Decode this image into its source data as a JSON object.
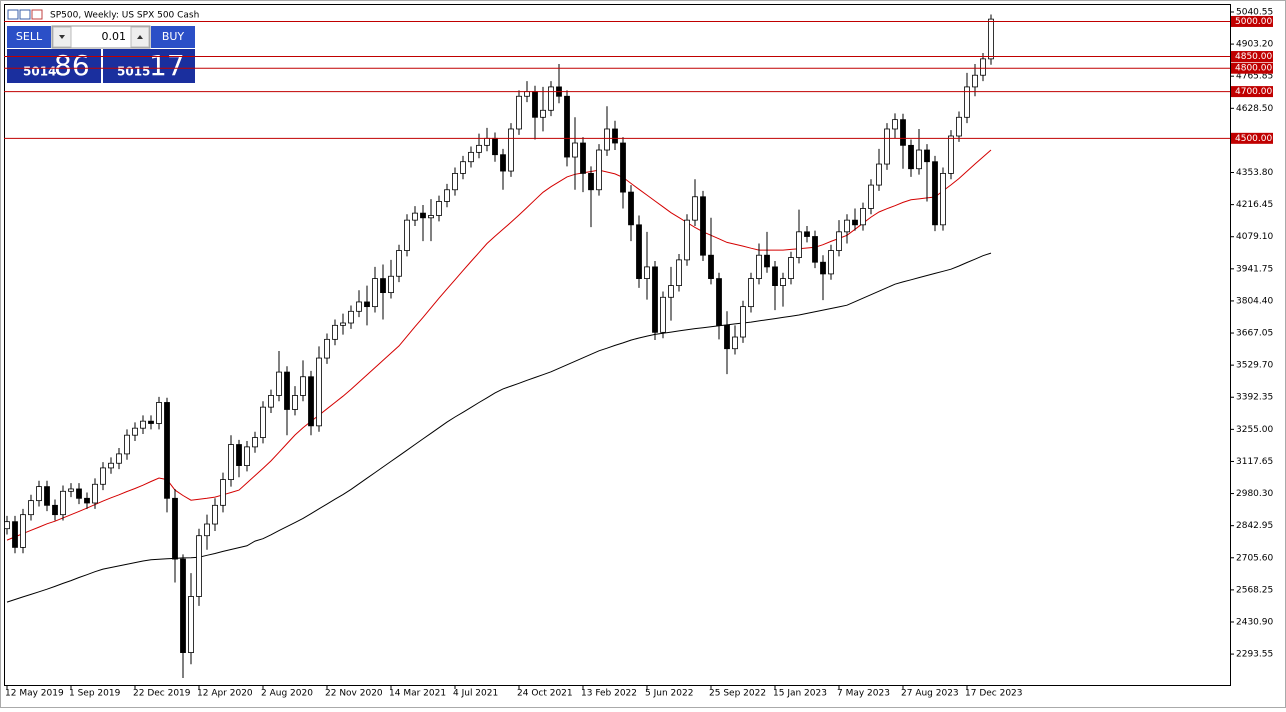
{
  "chart_data": {
    "type": "candlestick",
    "title": "SP500, Weekly: US SPX 500 Cash",
    "categories": [
      "12 May 2019",
      null,
      null,
      null,
      null,
      null,
      null,
      null,
      "1 Sep 2019",
      null,
      null,
      null,
      null,
      null,
      null,
      null,
      "22 Dec 2019",
      null,
      null,
      null,
      null,
      null,
      null,
      null,
      "12 Apr 2020",
      null,
      null,
      null,
      null,
      null,
      null,
      null,
      "2 Aug 2020",
      null,
      null,
      null,
      null,
      null,
      null,
      null,
      "22 Nov 2020",
      null,
      null,
      null,
      null,
      null,
      null,
      null,
      "14 Mar 2021",
      null,
      null,
      null,
      null,
      null,
      null,
      null,
      "4 Jul 2021",
      null,
      null,
      null,
      null,
      null,
      null,
      null,
      "24 Oct 2021",
      null,
      null,
      null,
      null,
      null,
      null,
      null,
      "13 Feb 2022",
      null,
      null,
      null,
      null,
      null,
      null,
      null,
      "5 Jun 2022",
      null,
      null,
      null,
      null,
      null,
      null,
      null,
      "25 Sep 2022",
      null,
      null,
      null,
      null,
      null,
      null,
      null,
      "15 Jan 2023",
      null,
      null,
      null,
      null,
      null,
      null,
      null,
      "7 May 2023",
      null,
      null,
      null,
      null,
      null,
      null,
      null,
      "27 Aug 2023",
      null,
      null,
      null,
      null,
      null,
      null,
      null,
      "17 Dec 2023",
      null,
      null,
      null
    ],
    "open": [
      2830,
      2860,
      2750,
      2890,
      2950,
      3010,
      2930,
      2890,
      2990,
      3000,
      2960,
      2940,
      3020,
      3090,
      3110,
      3150,
      3230,
      3260,
      3290,
      3280,
      3370,
      2960,
      2700,
      2300,
      2540,
      2800,
      2850,
      2930,
      3040,
      3190,
      3100,
      3180,
      3220,
      3350,
      3400,
      3500,
      3340,
      3400,
      3480,
      3270,
      3560,
      3640,
      3700,
      3710,
      3760,
      3800,
      3780,
      3900,
      3840,
      3910,
      4020,
      4150,
      4180,
      4160,
      4170,
      4230,
      4280,
      4350,
      4400,
      4440,
      4470,
      4500,
      4430,
      4360,
      4540,
      4680,
      4700,
      4590,
      4620,
      4720,
      4680,
      4420,
      4480,
      4350,
      4280,
      4450,
      4540,
      4480,
      4270,
      4130,
      3900,
      3950,
      3670,
      3820,
      3870,
      3980,
      4150,
      4250,
      4000,
      3900,
      3700,
      3600,
      3650,
      3780,
      3900,
      4000,
      3950,
      3870,
      3900,
      3990,
      4100,
      4080,
      3970,
      3920,
      4020,
      4100,
      4150,
      4130,
      4200,
      4300,
      4390,
      4540,
      4580,
      4470,
      4370,
      4450,
      4400,
      4130,
      4350,
      4510,
      4590,
      4720,
      4770,
      4840
    ],
    "high": [
      2885,
      2885,
      2915,
      2975,
      3035,
      3035,
      2955,
      3015,
      3025,
      3025,
      2985,
      3045,
      3115,
      3135,
      3175,
      3255,
      3285,
      3315,
      3315,
      3394,
      3390,
      3000,
      2720,
      2640,
      2830,
      2890,
      2960,
      3070,
      3230,
      3210,
      3205,
      3245,
      3375,
      3425,
      3590,
      3525,
      3440,
      3550,
      3505,
      3610,
      3665,
      3725,
      3750,
      3785,
      3850,
      3870,
      3950,
      3960,
      3980,
      4045,
      4175,
      4210,
      4215,
      4240,
      4255,
      4305,
      4375,
      4425,
      4465,
      4520,
      4545,
      4525,
      4455,
      4565,
      4705,
      4745,
      4725,
      4720,
      4745,
      4818,
      4705,
      4590,
      4505,
      4380,
      4475,
      4637,
      4575,
      4505,
      4300,
      4170,
      4100,
      3975,
      3845,
      3950,
      4005,
      4175,
      4325,
      4275,
      4160,
      3925,
      3760,
      3700,
      3805,
      3925,
      4050,
      4100,
      3975,
      3925,
      4015,
      4195,
      4125,
      4105,
      4000,
      4045,
      4150,
      4175,
      4200,
      4225,
      4325,
      4455,
      4565,
      4607,
      4605,
      4495,
      4540,
      4475,
      4425,
      4375,
      4535,
      4615,
      4780,
      4818,
      4865,
      5030
    ],
    "low": [
      2805,
      2725,
      2725,
      2865,
      2925,
      2905,
      2865,
      2865,
      2965,
      2935,
      2915,
      2915,
      2995,
      3065,
      3085,
      3125,
      3205,
      3235,
      3255,
      3255,
      2900,
      2600,
      2191,
      2250,
      2500,
      2740,
      2820,
      2900,
      3010,
      3050,
      3075,
      3155,
      3195,
      3325,
      3375,
      3230,
      3315,
      3375,
      3230,
      3245,
      3535,
      3615,
      3660,
      3685,
      3735,
      3700,
      3755,
      3725,
      3815,
      3885,
      3995,
      4125,
      4060,
      4060,
      4145,
      4205,
      4255,
      4325,
      4375,
      4415,
      4445,
      4400,
      4280,
      4335,
      4515,
      4655,
      4495,
      4530,
      4595,
      4650,
      4380,
      4280,
      4270,
      4120,
      4255,
      4425,
      4450,
      4200,
      4060,
      3860,
      3810,
      3637,
      3645,
      3720,
      3845,
      3955,
      4125,
      3975,
      3875,
      3640,
      3491,
      3575,
      3625,
      3755,
      3875,
      3925,
      3765,
      3780,
      3875,
      3965,
      4055,
      3945,
      3808,
      3895,
      3995,
      4050,
      4105,
      4105,
      4175,
      4275,
      4365,
      4500,
      4370,
      4335,
      4345,
      4230,
      4103,
      4105,
      4325,
      4485,
      4565,
      4680,
      4745,
      4815
    ],
    "close": [
      2860,
      2750,
      2890,
      2950,
      3010,
      2930,
      2890,
      2990,
      3000,
      2960,
      2940,
      3020,
      3090,
      3110,
      3150,
      3230,
      3260,
      3290,
      3280,
      3370,
      2960,
      2700,
      2300,
      2540,
      2800,
      2850,
      2930,
      3040,
      3190,
      3100,
      3180,
      3220,
      3350,
      3400,
      3500,
      3340,
      3400,
      3480,
      3270,
      3560,
      3640,
      3700,
      3710,
      3760,
      3800,
      3780,
      3900,
      3840,
      3910,
      4020,
      4150,
      4180,
      4160,
      4170,
      4230,
      4280,
      4350,
      4400,
      4440,
      4470,
      4500,
      4430,
      4360,
      4540,
      4680,
      4700,
      4590,
      4620,
      4720,
      4680,
      4420,
      4480,
      4350,
      4280,
      4450,
      4540,
      4480,
      4270,
      4130,
      3900,
      3950,
      3670,
      3820,
      3870,
      3980,
      4150,
      4250,
      4000,
      3900,
      3700,
      3600,
      3650,
      3780,
      3900,
      4000,
      3950,
      3870,
      3900,
      3990,
      4100,
      4080,
      3970,
      3920,
      4020,
      4100,
      4150,
      4130,
      4200,
      4300,
      4390,
      4540,
      4580,
      4470,
      4370,
      4450,
      4400,
      4130,
      4350,
      4510,
      4590,
      4720,
      4770,
      4840,
      5010
    ],
    "up_color": "#ffffff",
    "down_color": "#000000",
    "series": [
      {
        "color": "#d40000",
        "values": [
          2781,
          2795,
          2809,
          2823,
          2837,
          2851,
          2862,
          2876,
          2890,
          2904,
          2918,
          2933,
          2948,
          2962,
          2975,
          2989,
          3002,
          3016,
          3032,
          3047,
          3040,
          2995,
          2972,
          2952,
          2956,
          2960,
          2965,
          2975,
          2985,
          2995,
          3026,
          3057,
          3088,
          3120,
          3157,
          3194,
          3231,
          3262,
          3289,
          3316,
          3343,
          3370,
          3397,
          3426,
          3457,
          3488,
          3519,
          3550,
          3581,
          3612,
          3653,
          3694,
          3734,
          3775,
          3816,
          3856,
          3895,
          3934,
          3973,
          4011,
          4050,
          4081,
          4111,
          4141,
          4172,
          4204,
          4237,
          4269,
          4293,
          4314,
          4335,
          4346,
          4352,
          4358,
          4364,
          4356,
          4348,
          4333,
          4307,
          4282,
          4257,
          4232,
          4207,
          4182,
          4161,
          4140,
          4119,
          4100,
          4085,
          4070,
          4055,
          4047,
          4039,
          4030,
          4022,
          4022,
          4022,
          4022,
          4025,
          4028,
          4031,
          4034,
          4045,
          4059,
          4072,
          4085,
          4111,
          4137,
          4163,
          4185,
          4199,
          4212,
          4226,
          4237,
          4241,
          4245,
          4249,
          4275,
          4301,
          4328,
          4359,
          4390,
          4420,
          4450
        ]
      },
      {
        "color": "#000000",
        "values": [
          2516,
          2527,
          2538,
          2549,
          2560,
          2571,
          2583,
          2596,
          2608,
          2621,
          2633,
          2646,
          2657,
          2664,
          2671,
          2678,
          2685,
          2692,
          2697,
          2699,
          2701,
          2703,
          2705,
          2706,
          2708,
          2716,
          2724,
          2733,
          2741,
          2749,
          2757,
          2777,
          2787,
          2804,
          2822,
          2839,
          2856,
          2874,
          2894,
          2915,
          2935,
          2956,
          2976,
          2998,
          3022,
          3046,
          3070,
          3094,
          3118,
          3142,
          3166,
          3190,
          3214,
          3238,
          3262,
          3286,
          3308,
          3328,
          3349,
          3370,
          3390,
          3411,
          3428,
          3440,
          3452,
          3465,
          3477,
          3489,
          3501,
          3516,
          3531,
          3546,
          3561,
          3576,
          3591,
          3602,
          3614,
          3625,
          3637,
          3646,
          3654,
          3661,
          3666,
          3671,
          3676,
          3681,
          3686,
          3690,
          3694,
          3698,
          3702,
          3706,
          3710,
          3714,
          3719,
          3724,
          3729,
          3734,
          3739,
          3744,
          3751,
          3758,
          3765,
          3772,
          3779,
          3786,
          3801,
          3816,
          3831,
          3846,
          3861,
          3876,
          3886,
          3895,
          3904,
          3913,
          3922,
          3931,
          3940,
          3954,
          3969,
          3983,
          3998,
          4009
        ]
      }
    ],
    "levels": [
      {
        "value": 5000,
        "label": "5000.00"
      },
      {
        "value": 4850,
        "label": "4850.00"
      },
      {
        "value": 4800,
        "label": "4800.00"
      },
      {
        "value": 4700,
        "label": "4700.00"
      },
      {
        "value": 4500,
        "label": "4500.00"
      }
    ],
    "level_color": "#c00000",
    "ylim": [
      2161.3,
      5074.7
    ],
    "yticks": [
      5040.55,
      {
        "value": 4903.2,
        "label": "4903.20"
      },
      4765.85,
      {
        "value": 4628.5,
        "label": "4628.50"
      },
      {
        "value": 4353.8,
        "label": "4353.80"
      },
      4216.45,
      {
        "value": 4079.1,
        "label": "4079.10"
      },
      3941.75,
      {
        "value": 3804.4,
        "label": "3804.40"
      },
      3667.05,
      {
        "value": 3529.7,
        "label": "3529.70"
      },
      3392.35,
      {
        "value": 3255,
        "label": "3255.00"
      },
      3117.65,
      {
        "value": 2980.3,
        "label": "2980.30"
      },
      2842.95,
      {
        "value": 2705.6,
        "label": "2705.60"
      },
      2568.25,
      {
        "value": 2430.9,
        "label": "2430.90"
      },
      2293.55
    ]
  },
  "trade_panel": {
    "sell": "SELL",
    "buy": "BUY",
    "lot": "0.01",
    "bid_big": "5014",
    "bid_pips": "86",
    "ask_big": "5015",
    "ask_pips": "17"
  }
}
